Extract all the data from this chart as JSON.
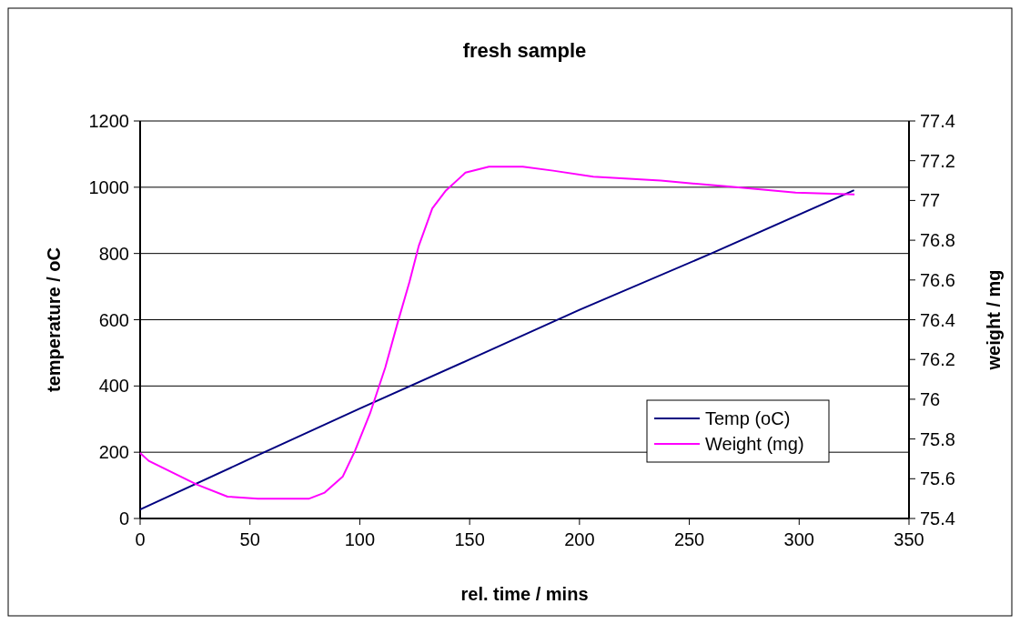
{
  "chart_data": {
    "type": "line",
    "title": "fresh sample",
    "xlabel": "rel. time / mins",
    "ylabel": "temperature / oC",
    "y2label": "weight / mg",
    "xlim": [
      0,
      350
    ],
    "xticks": [
      0,
      50,
      100,
      150,
      200,
      250,
      300,
      350
    ],
    "ylim": [
      0,
      1200
    ],
    "yticks": [
      0,
      200,
      400,
      600,
      800,
      1000,
      1200
    ],
    "y2lim": [
      75.4,
      77.4
    ],
    "y2ticks": [
      75.4,
      75.6,
      75.8,
      76,
      76.2,
      76.4,
      76.6,
      76.8,
      77,
      77.2,
      77.4
    ],
    "grid": "y",
    "legend": "bottom right",
    "marker": "none",
    "line_style": "solid",
    "series": [
      {
        "name": "Temp (oC)",
        "color": "#000080",
        "x": [
          0,
          50,
          100,
          150,
          200,
          260,
          325
        ],
        "values": [
          27,
          180,
          332,
          480,
          630,
          800,
          991
        ]
      },
      {
        "name": "Weight (mg)",
        "color": "#ff00ff",
        "axis": "y2",
        "x": [
          0,
          3.9,
          26,
          39.8,
          53.6,
          77,
          84,
          92.2,
          97.8,
          104.7,
          111.6,
          117.1,
          122.6,
          126.8,
          133,
          139.2,
          148.1,
          158.8,
          174.2,
          188,
          206.3,
          237,
          267.8,
          298.4,
          325.2
        ],
        "values": [
          75.73,
          75.69,
          75.57,
          75.51,
          75.5,
          75.5,
          75.53,
          75.61,
          75.74,
          75.93,
          76.16,
          76.38,
          76.59,
          76.77,
          76.96,
          77.05,
          77.14,
          77.17,
          77.17,
          77.15,
          77.12,
          77.1,
          77.07,
          77.04,
          77.03
        ]
      }
    ]
  }
}
